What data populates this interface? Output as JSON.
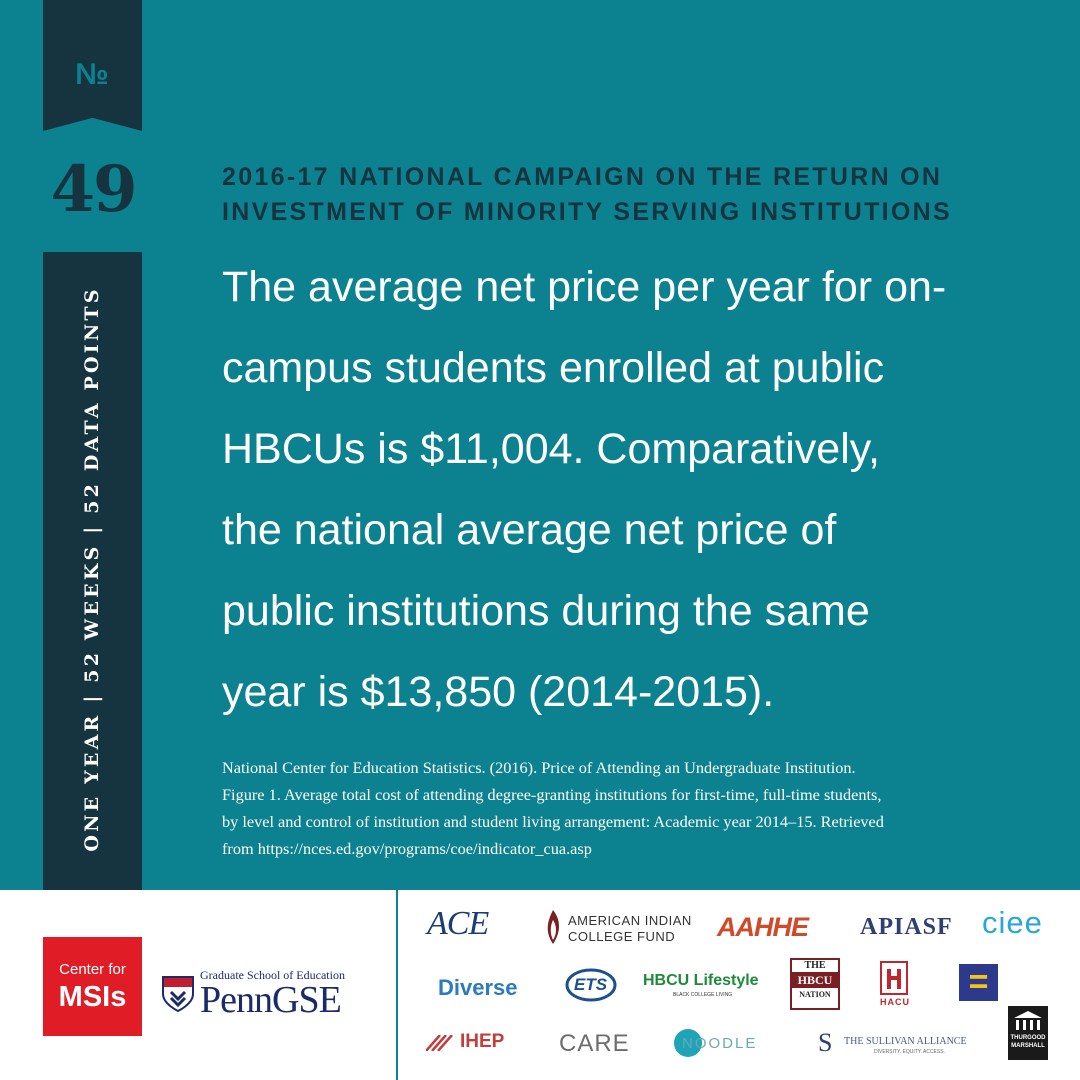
{
  "badge": {
    "no_label": "№",
    "number": "49"
  },
  "side_caption": "ONE YEAR | 52 WEEKS | 52 DATA POINTS",
  "heading": {
    "line1": "2016-17 NATIONAL CAMPAIGN ON THE RETURN ON",
    "line2": "INVESTMENT OF MINORITY SERVING INSTITUTIONS"
  },
  "body_lines": [
    "The average net price per year for on-",
    "campus students enrolled at public",
    "HBCUs is $11,004. Comparatively,",
    "the national average net price of",
    "public institutions during the same",
    "year is $13,850 (2014-2015)."
  ],
  "source_lines": [
    "National Center for Education Statistics. (2016). Price of Attending an Undergraduate Institution.",
    "Figure 1. Average total cost of attending degree-granting institutions for first-time, full-time students,",
    "by level and control of institution and student living arrangement: Academic year 2014–15. Retrieved",
    "from https://nces.ed.gov/programs/coe/indicator_cua.asp"
  ],
  "footer": {
    "msi_small": "Center for",
    "msi_big": "MSIs",
    "penn_sub": "Graduate School of Education",
    "penn_main": "Penn",
    "penn_gse": "GSE"
  },
  "partners": {
    "ace": "ACE",
    "aicf_1": "AMERICAN INDIAN",
    "aicf_2": "COLLEGE FUND",
    "aahhe": "AAHHE",
    "apiasf": "APIASF",
    "ciee": "ciee",
    "diverse": "Diverse",
    "ets": "ETS",
    "hbcu_lifestyle": "HBCU Lifestyle",
    "hbcu_lifestyle_sub": "BLACK COLLEGE LIVING",
    "hbcu_nation_1": "THE",
    "hbcu_nation_2": "HBCU",
    "hbcu_nation_3": "NATION",
    "hacu": "HACU",
    "hrc": "=",
    "ihep": "IHEP",
    "care": "CARE",
    "noodle": "NOODLE",
    "sullivan": "THE SULLIVAN ALLIANCE",
    "sullivan_sub": "DIVERSITY. EQUITY. ACCESS.",
    "tmcf_1": "THURGOOD",
    "tmcf_2": "MARSHALL"
  },
  "colors": {
    "teal": "#0c8190",
    "navy": "#15343f",
    "red": "#e01d27",
    "penn_blue": "#1b2a6b"
  }
}
